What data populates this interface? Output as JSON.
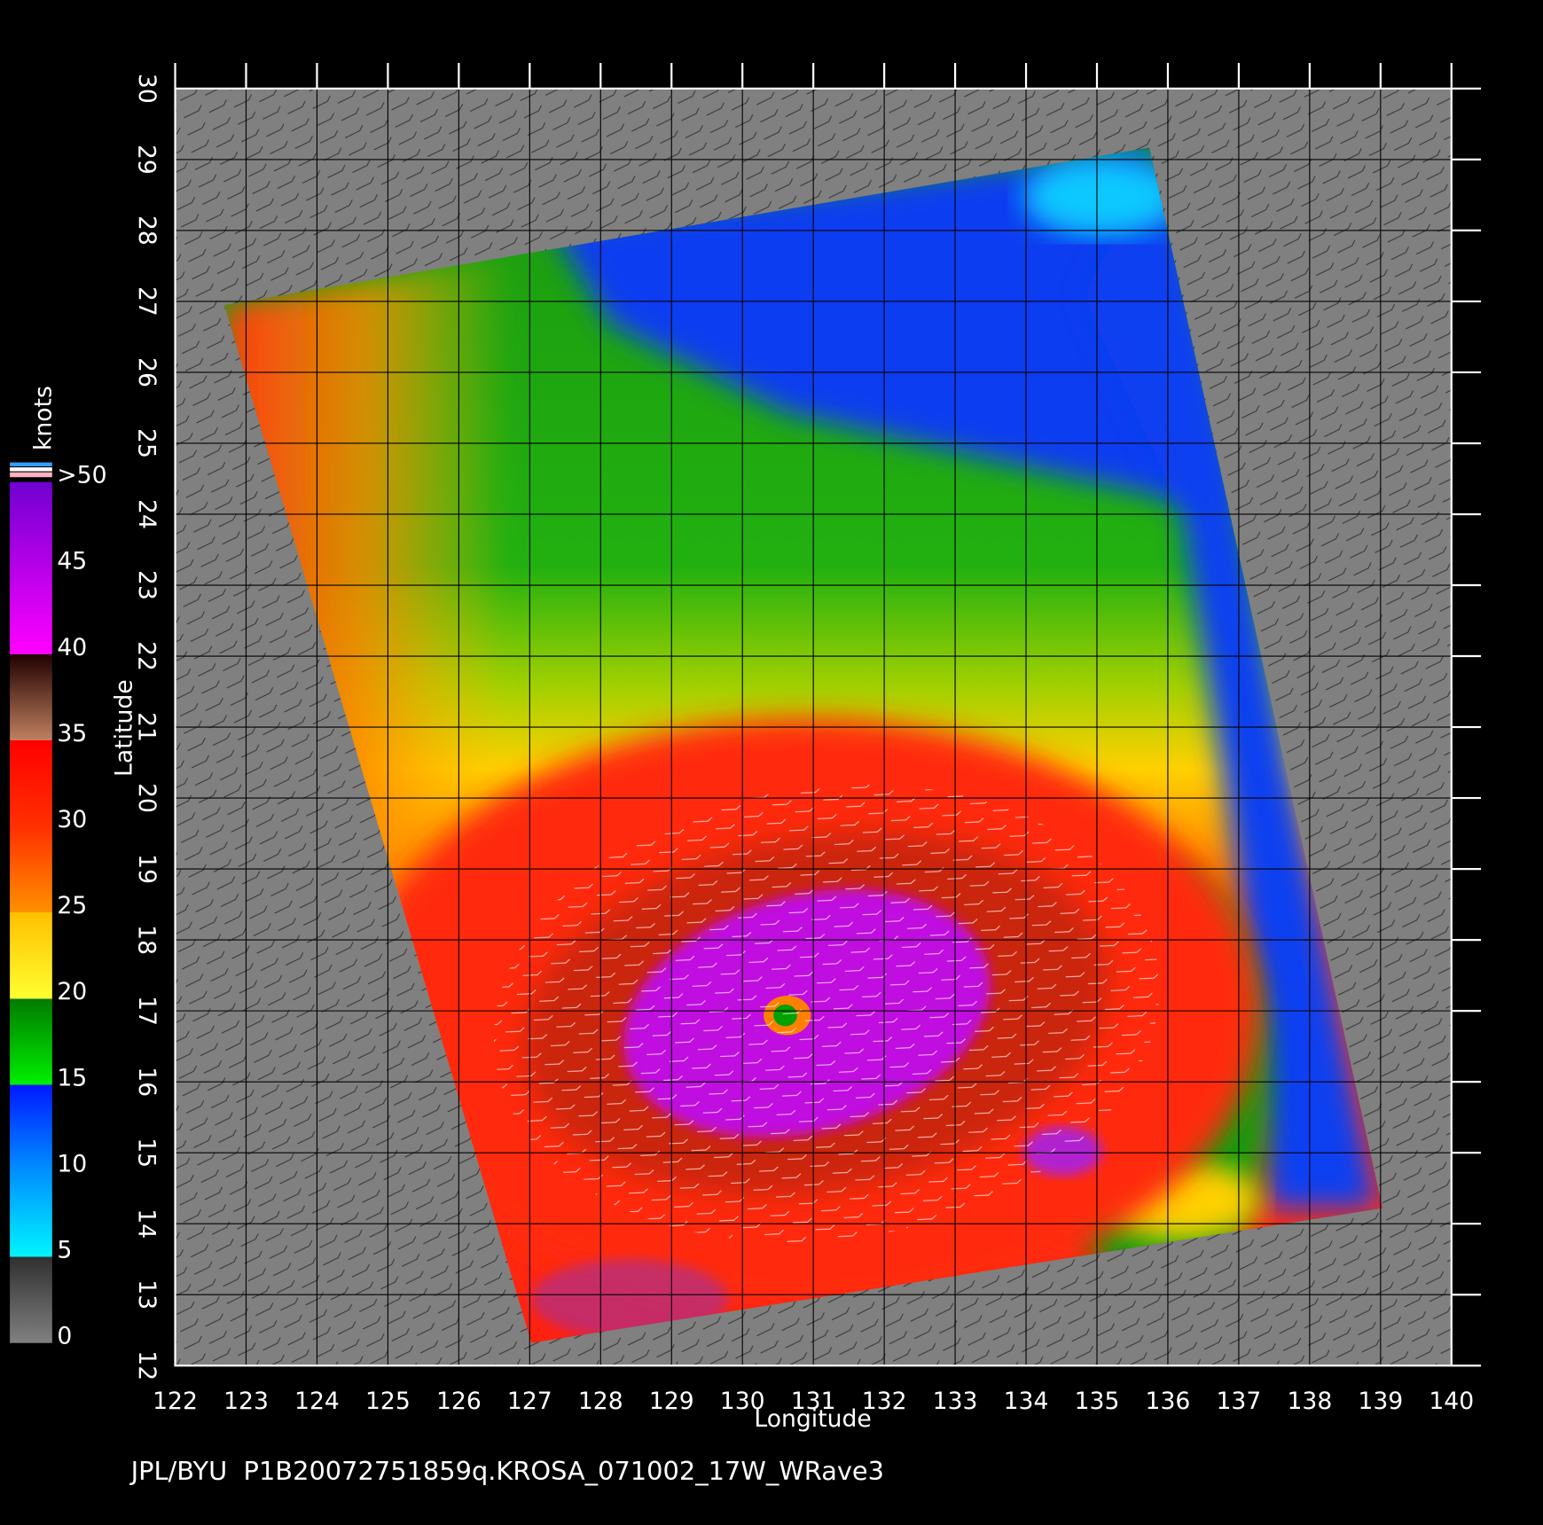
{
  "map": {
    "title": "JPL/BYU  P1B20072751859q.KROSA_071002_17W_WRave3",
    "x_axis": {
      "label": "Longitude",
      "lim": [
        122,
        140
      ],
      "ticks": [
        122,
        123,
        124,
        125,
        126,
        127,
        128,
        129,
        130,
        131,
        132,
        133,
        134,
        135,
        136,
        137,
        138,
        139,
        140
      ]
    },
    "y_axis": {
      "label": "Latitude",
      "lim": [
        12,
        30
      ],
      "ticks": [
        12,
        13,
        14,
        15,
        16,
        17,
        18,
        19,
        20,
        21,
        22,
        23,
        24,
        25,
        26,
        27,
        28,
        29,
        30
      ]
    },
    "colorbar": {
      "label": "knots",
      "lim": [
        0,
        50
      ],
      "ticks": [
        0,
        5,
        10,
        15,
        20,
        25,
        30,
        35,
        40,
        45,
        {
          "value": 50,
          "label": ">50"
        }
      ]
    }
  }
}
